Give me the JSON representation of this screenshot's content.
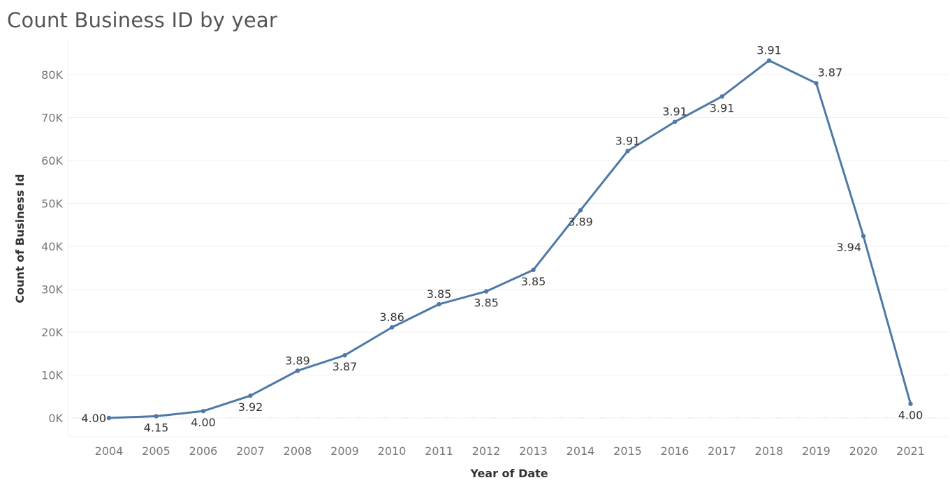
{
  "title": "Count Business ID by year",
  "chart_data": {
    "type": "line",
    "title": "Count Business ID by year",
    "xlabel": "Year of Date",
    "ylabel": "Count of Business Id",
    "ylim": [
      -4000,
      87500
    ],
    "y_ticks": [
      0,
      10000,
      20000,
      30000,
      40000,
      50000,
      60000,
      70000,
      80000
    ],
    "y_tick_labels": [
      "0K",
      "10K",
      "20K",
      "30K",
      "40K",
      "50K",
      "60K",
      "70K",
      "80K"
    ],
    "grid": "horizontal",
    "line_color": "#4e79a7",
    "categories": [
      "2004",
      "2005",
      "2006",
      "2007",
      "2008",
      "2009",
      "2010",
      "2011",
      "2012",
      "2013",
      "2014",
      "2015",
      "2016",
      "2017",
      "2018",
      "2019",
      "2020",
      "2021"
    ],
    "values": [
      0,
      400,
      1600,
      5200,
      11000,
      14600,
      21100,
      26500,
      29500,
      34500,
      48400,
      62200,
      69000,
      74900,
      83300,
      78000,
      42400,
      3300
    ],
    "data_labels": [
      "4.00",
      "4.15",
      "4.00",
      "3.92",
      "3.89",
      "3.87",
      "3.86",
      "3.85",
      "3.85",
      "3.85",
      "3.89",
      "3.91",
      "3.91",
      "3.91",
      "3.91",
      "3.87",
      "3.94",
      "4.00"
    ],
    "label_positions": [
      "left",
      "below",
      "below",
      "below",
      "above",
      "below",
      "above",
      "above",
      "below",
      "below",
      "below",
      "above",
      "above",
      "below",
      "above",
      "right",
      "left",
      "below"
    ]
  }
}
